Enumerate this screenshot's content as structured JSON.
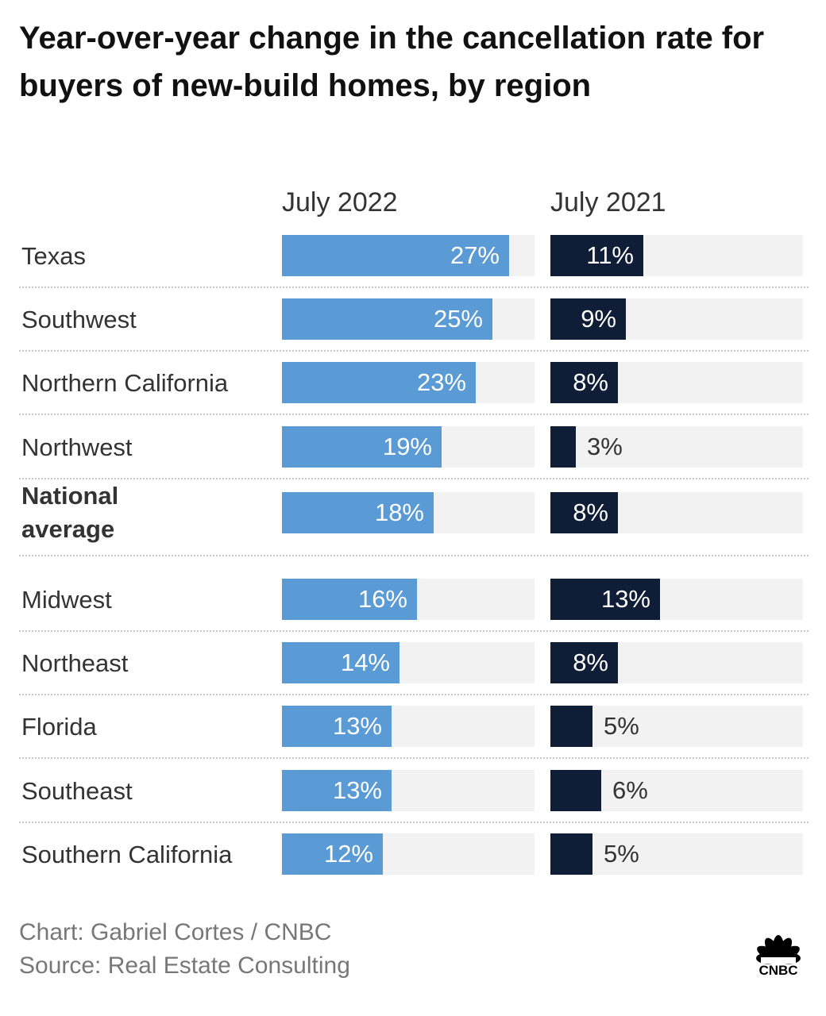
{
  "title": "Year-over-year change in the cancellation rate for buyers of new-build homes, by region",
  "footer": {
    "credit": "Chart: Gabriel Cortes / CNBC",
    "source": "Source: Real Estate Consulting"
  },
  "logo": {
    "text": "CNBC",
    "icon": "nbc-peacock-icon"
  },
  "colors": {
    "july_2022": "#5b9bd5",
    "july_2021": "#0f1d37",
    "track": "#f2f2f2"
  },
  "chart_data": {
    "type": "bar",
    "orientation": "horizontal",
    "title": "Year-over-year change in the cancellation rate for buyers of new-build homes, by region",
    "categories": [
      "Texas",
      "Southwest",
      "Northern California",
      "Northwest",
      "National average",
      "Midwest",
      "Northeast",
      "Florida",
      "Southeast",
      "Southern California"
    ],
    "highlight_category": "National average",
    "series": [
      {
        "name": "July 2022",
        "values": [
          27,
          25,
          23,
          19,
          18,
          16,
          14,
          13,
          13,
          12
        ],
        "labels": [
          "27%",
          "25%",
          "23%",
          "19%",
          "18%",
          "16%",
          "14%",
          "13%",
          "13%",
          "12%"
        ]
      },
      {
        "name": "July 2021",
        "values": [
          11,
          9,
          8,
          3,
          8,
          13,
          8,
          5,
          6,
          5
        ],
        "labels": [
          "11%",
          "9%",
          "8%",
          "3%",
          "8%",
          "13%",
          "8%",
          "5%",
          "6%",
          "5%"
        ]
      }
    ],
    "xlim": [
      0,
      30
    ],
    "grid": false,
    "legend": "column headers"
  }
}
